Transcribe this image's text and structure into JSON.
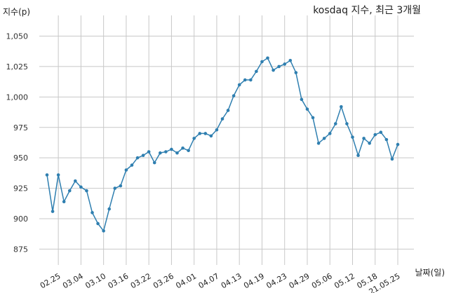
{
  "chart_data": {
    "type": "line",
    "title": "kosdaq 지수, 최근 3개월",
    "xlabel": "날짜(일)",
    "ylabel": "지수(p)",
    "ylim": [
      862,
      1067
    ],
    "yticks": [
      875,
      900,
      925,
      950,
      975,
      1000,
      1025,
      1050
    ],
    "ytick_labels": [
      "875",
      "900",
      "925",
      "950",
      "975",
      "1,000",
      "1,025",
      "1,050"
    ],
    "xticks": [
      "02.25",
      "03.04",
      "03.10",
      "03.16",
      "03.22",
      "03.26",
      "04.01",
      "04.07",
      "04.13",
      "04.19",
      "04.23",
      "04.29",
      "05.06",
      "05.12",
      "05.18",
      "21.05.25"
    ],
    "xtick_index": [
      2,
      6,
      10,
      14,
      18,
      22,
      26,
      30,
      34,
      38,
      42,
      46,
      50,
      54,
      58,
      62
    ],
    "grid": true,
    "line_color": "#2f7fb0",
    "series": [
      {
        "values": [
          936,
          906,
          936,
          914,
          923,
          931,
          926,
          923,
          905,
          896,
          890,
          908,
          925,
          927,
          940,
          944,
          950,
          952,
          955,
          946,
          954,
          955,
          957,
          954,
          958,
          956,
          966,
          970,
          970,
          968,
          973,
          982,
          989,
          1001,
          1010,
          1014,
          1014,
          1021,
          1029,
          1032,
          1022,
          1025,
          1027,
          1030,
          1020,
          998,
          990,
          983,
          962,
          966,
          970,
          978,
          992,
          978,
          967,
          952,
          966,
          962,
          969,
          971,
          965,
          949,
          961
        ]
      }
    ]
  }
}
